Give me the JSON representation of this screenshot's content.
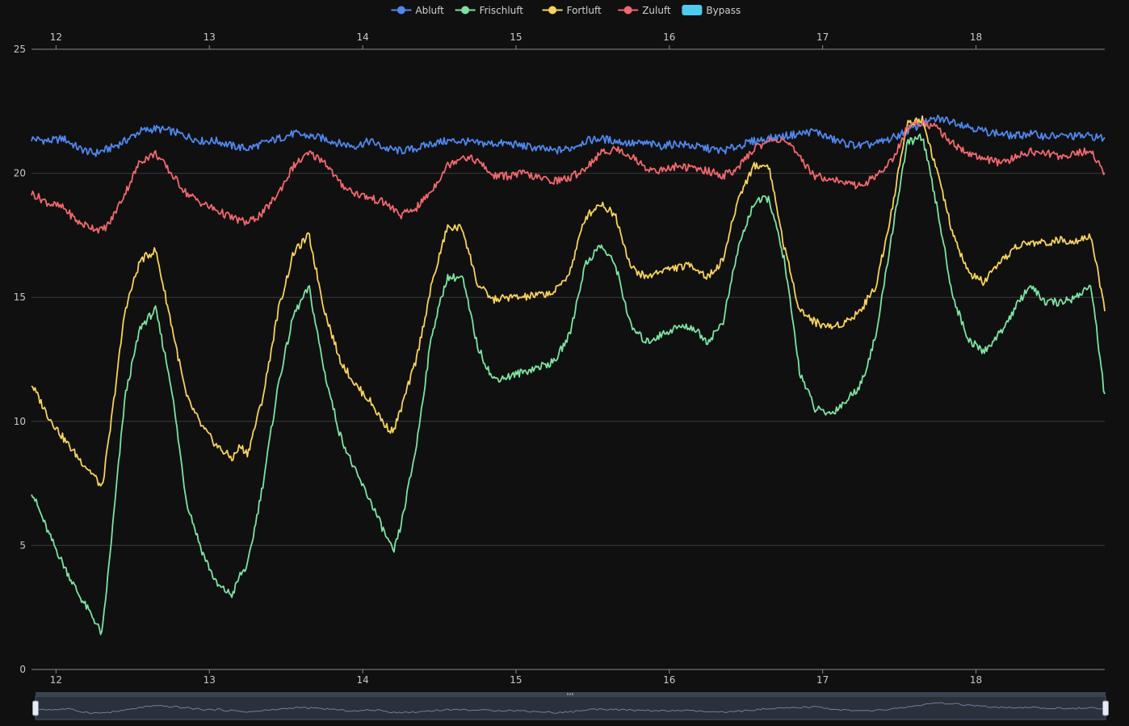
{
  "chart_data": {
    "type": "line",
    "title": "",
    "xlabel": "",
    "ylabel": "",
    "x_range": [
      11.84,
      18.84
    ],
    "x_ticks": [
      "12",
      "13",
      "14",
      "15",
      "16",
      "17",
      "18"
    ],
    "ylim": [
      0,
      25
    ],
    "y_ticks": [
      "0",
      "5",
      "10",
      "15",
      "20",
      "25"
    ],
    "grid": true,
    "legend_position": "top-center",
    "legend": [
      {
        "name": "Abluft",
        "color": "#4f87ee",
        "marker": "line-circle"
      },
      {
        "name": "Frischluft",
        "color": "#7de3a2",
        "marker": "line-circle"
      },
      {
        "name": "Fortluft",
        "color": "#f7d25e",
        "marker": "line-circle"
      },
      {
        "name": "Zuluft",
        "color": "#f0686d",
        "marker": "line-circle"
      },
      {
        "name": "Bypass",
        "color": "#4fcbed",
        "marker": "rect"
      }
    ],
    "series": [
      {
        "name": "Abluft",
        "color": "#4f87ee",
        "x": [
          11.84,
          11.95,
          12.05,
          12.15,
          12.25,
          12.35,
          12.45,
          12.55,
          12.65,
          12.75,
          12.85,
          12.95,
          13.05,
          13.15,
          13.25,
          13.35,
          13.45,
          13.55,
          13.65,
          13.75,
          13.85,
          13.95,
          14.05,
          14.15,
          14.25,
          14.35,
          14.45,
          14.55,
          14.65,
          14.75,
          14.85,
          14.95,
          15.05,
          15.15,
          15.25,
          15.35,
          15.45,
          15.55,
          15.65,
          15.75,
          15.85,
          15.95,
          16.05,
          16.15,
          16.25,
          16.35,
          16.45,
          16.55,
          16.65,
          16.75,
          16.85,
          16.95,
          17.05,
          17.15,
          17.25,
          17.35,
          17.45,
          17.55,
          17.65,
          17.75,
          17.85,
          17.95,
          18.05,
          18.15,
          18.25,
          18.35,
          18.45,
          18.55,
          18.65,
          18.75,
          18.84
        ],
        "y": [
          21.4,
          21.3,
          21.4,
          21.0,
          20.8,
          21.0,
          21.3,
          21.7,
          21.8,
          21.7,
          21.5,
          21.3,
          21.3,
          21.1,
          21.0,
          21.2,
          21.4,
          21.6,
          21.5,
          21.4,
          21.2,
          21.1,
          21.3,
          21.0,
          20.9,
          21.0,
          21.2,
          21.3,
          21.3,
          21.2,
          21.2,
          21.2,
          21.1,
          21.0,
          20.9,
          21.0,
          21.3,
          21.4,
          21.3,
          21.2,
          21.2,
          21.1,
          21.2,
          21.1,
          21.0,
          20.9,
          21.1,
          21.3,
          21.4,
          21.5,
          21.6,
          21.7,
          21.4,
          21.2,
          21.1,
          21.2,
          21.4,
          21.7,
          22.0,
          22.2,
          22.1,
          21.9,
          21.7,
          21.6,
          21.5,
          21.6,
          21.5,
          21.5,
          21.5,
          21.5,
          21.4
        ]
      },
      {
        "name": "Frischluft",
        "color": "#7de3a2",
        "x": [
          11.84,
          11.95,
          12.05,
          12.15,
          12.25,
          12.3,
          12.35,
          12.45,
          12.55,
          12.65,
          12.75,
          12.85,
          12.95,
          13.05,
          13.15,
          13.2,
          13.25,
          13.35,
          13.45,
          13.55,
          13.65,
          13.75,
          13.85,
          13.95,
          14.05,
          14.15,
          14.2,
          14.25,
          14.35,
          14.45,
          14.55,
          14.65,
          14.75,
          14.85,
          14.95,
          15.05,
          15.15,
          15.25,
          15.35,
          15.45,
          15.55,
          15.65,
          15.75,
          15.85,
          15.95,
          16.05,
          16.15,
          16.25,
          16.35,
          16.45,
          16.55,
          16.65,
          16.75,
          16.85,
          16.95,
          17.05,
          17.15,
          17.25,
          17.35,
          17.45,
          17.55,
          17.65,
          17.75,
          17.85,
          17.95,
          18.05,
          18.15,
          18.25,
          18.35,
          18.45,
          18.55,
          18.65,
          18.75,
          18.84
        ],
        "y": [
          7.2,
          5.5,
          4.2,
          3.0,
          2.0,
          1.4,
          4.5,
          11.0,
          13.8,
          14.5,
          11.5,
          6.8,
          4.8,
          3.4,
          3.0,
          3.8,
          4.2,
          7.5,
          11.5,
          14.3,
          15.4,
          12.0,
          9.5,
          8.0,
          6.8,
          5.4,
          4.7,
          5.8,
          9.0,
          13.5,
          15.8,
          15.8,
          13.0,
          11.7,
          11.8,
          12.0,
          12.2,
          12.4,
          13.5,
          16.3,
          17.1,
          16.3,
          13.8,
          13.2,
          13.5,
          13.8,
          13.8,
          13.2,
          14.0,
          17.0,
          18.8,
          19.0,
          16.5,
          12.0,
          10.5,
          10.3,
          10.8,
          11.5,
          13.5,
          17.5,
          21.2,
          21.5,
          18.5,
          15.0,
          13.3,
          12.8,
          13.5,
          14.5,
          15.5,
          14.8,
          14.8,
          15.0,
          15.5,
          11.0
        ]
      },
      {
        "name": "Fortluft",
        "color": "#f7d25e",
        "x": [
          11.84,
          11.95,
          12.05,
          12.15,
          12.25,
          12.3,
          12.35,
          12.45,
          12.55,
          12.65,
          12.75,
          12.85,
          12.95,
          13.05,
          13.15,
          13.2,
          13.25,
          13.35,
          13.45,
          13.55,
          13.65,
          13.75,
          13.85,
          13.95,
          14.05,
          14.15,
          14.2,
          14.25,
          14.35,
          14.45,
          14.55,
          14.65,
          14.75,
          14.85,
          14.95,
          15.05,
          15.15,
          15.25,
          15.35,
          15.45,
          15.55,
          15.65,
          15.75,
          15.85,
          15.95,
          16.05,
          16.15,
          16.25,
          16.35,
          16.45,
          16.55,
          16.65,
          16.75,
          16.85,
          16.95,
          17.05,
          17.15,
          17.25,
          17.35,
          17.45,
          17.55,
          17.65,
          17.75,
          17.85,
          17.95,
          18.05,
          18.15,
          18.25,
          18.35,
          18.45,
          18.55,
          18.65,
          18.75,
          18.84
        ],
        "y": [
          11.5,
          10.2,
          9.3,
          8.5,
          7.8,
          7.3,
          9.5,
          14.5,
          16.5,
          16.9,
          14.0,
          11.0,
          9.8,
          9.0,
          8.5,
          9.0,
          8.7,
          11.0,
          14.5,
          16.8,
          17.5,
          14.5,
          12.5,
          11.5,
          10.8,
          9.8,
          9.6,
          10.5,
          12.5,
          15.5,
          17.8,
          17.8,
          15.5,
          14.9,
          15.0,
          15.0,
          15.1,
          15.2,
          16.0,
          18.2,
          18.8,
          18.3,
          16.2,
          15.8,
          16.1,
          16.2,
          16.3,
          15.8,
          16.5,
          19.0,
          20.3,
          20.3,
          17.0,
          14.5,
          14.0,
          13.8,
          14.0,
          14.5,
          15.5,
          18.5,
          22.0,
          22.2,
          20.0,
          17.5,
          16.0,
          15.6,
          16.3,
          17.0,
          17.2,
          17.2,
          17.3,
          17.3,
          17.5,
          14.5
        ]
      },
      {
        "name": "Zuluft",
        "color": "#f0686d",
        "x": [
          11.84,
          11.95,
          12.05,
          12.15,
          12.25,
          12.3,
          12.35,
          12.45,
          12.55,
          12.65,
          12.75,
          12.85,
          12.95,
          13.05,
          13.15,
          13.25,
          13.35,
          13.45,
          13.55,
          13.65,
          13.75,
          13.85,
          13.95,
          14.05,
          14.15,
          14.25,
          14.35,
          14.45,
          14.55,
          14.65,
          14.75,
          14.85,
          14.95,
          15.05,
          15.15,
          15.25,
          15.35,
          15.45,
          15.55,
          15.65,
          15.75,
          15.85,
          15.95,
          16.05,
          16.15,
          16.25,
          16.35,
          16.45,
          16.55,
          16.65,
          16.75,
          16.85,
          16.95,
          17.05,
          17.15,
          17.25,
          17.35,
          17.45,
          17.55,
          17.65,
          17.75,
          17.85,
          17.95,
          18.05,
          18.15,
          18.25,
          18.35,
          18.45,
          18.55,
          18.65,
          18.75,
          18.84
        ],
        "y": [
          19.2,
          18.8,
          18.6,
          18.0,
          17.8,
          17.7,
          18.0,
          19.2,
          20.5,
          20.8,
          20.0,
          19.2,
          18.8,
          18.5,
          18.2,
          18.0,
          18.4,
          19.2,
          20.3,
          20.8,
          20.5,
          19.6,
          19.2,
          19.0,
          18.8,
          18.3,
          18.6,
          19.3,
          20.3,
          20.7,
          20.5,
          19.9,
          19.9,
          20.0,
          19.8,
          19.7,
          19.8,
          20.2,
          20.8,
          21.0,
          20.7,
          20.2,
          20.1,
          20.3,
          20.2,
          20.1,
          19.9,
          20.2,
          21.0,
          21.3,
          21.4,
          20.6,
          19.9,
          19.8,
          19.6,
          19.5,
          19.9,
          20.5,
          21.8,
          22.1,
          21.8,
          21.2,
          20.8,
          20.6,
          20.4,
          20.6,
          20.9,
          20.8,
          20.7,
          20.8,
          20.9,
          20.0
        ]
      }
    ]
  },
  "zoom_slider": {
    "start_percent": 0,
    "end_percent": 100
  }
}
